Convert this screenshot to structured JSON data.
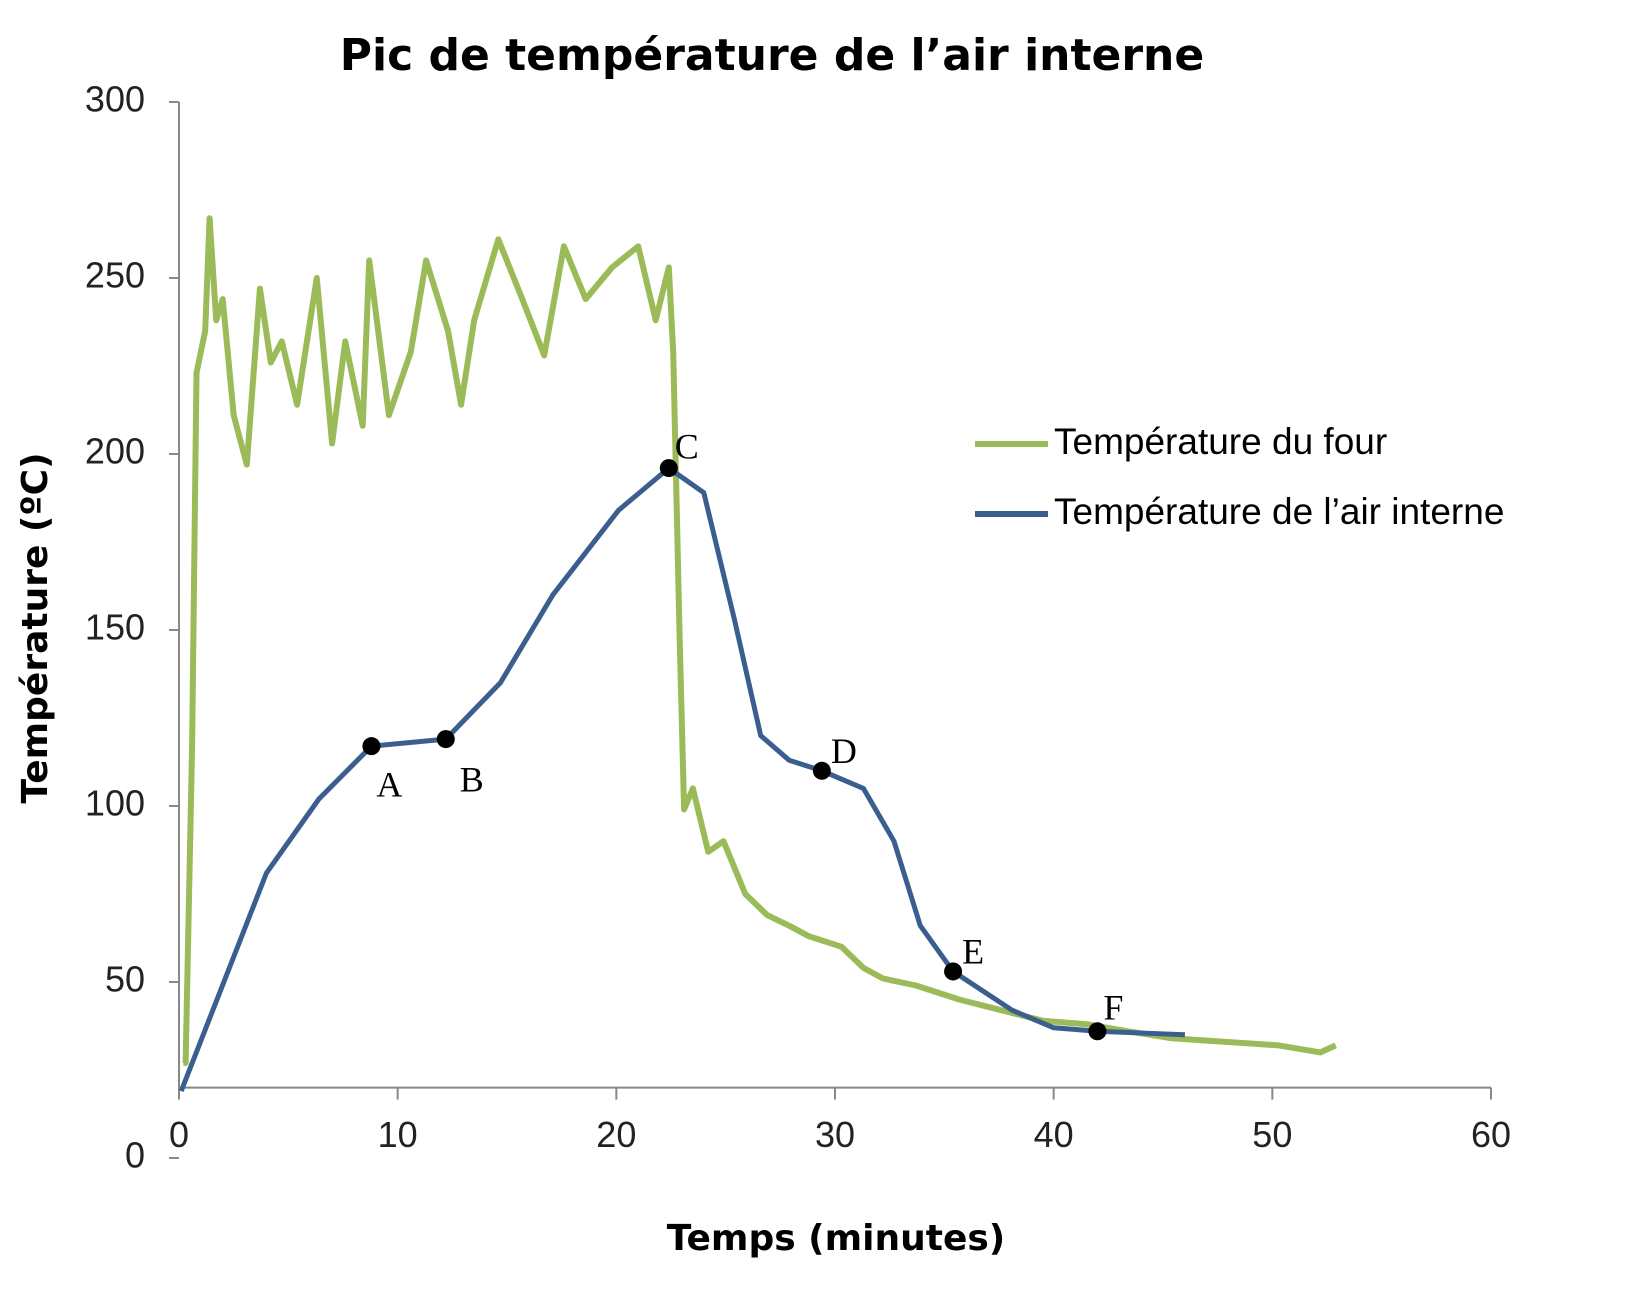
{
  "chart_data": {
    "type": "line",
    "title": "Pic de température de l’air interne",
    "x_label": "Temps (minutes)",
    "y_label": "Température (ºC)",
    "xlim": [
      0,
      60
    ],
    "xticks": [
      0,
      10,
      20,
      30,
      40,
      50,
      60
    ],
    "ylim": [
      0,
      300
    ],
    "yticks": [
      0,
      50,
      100,
      150,
      200,
      250,
      300
    ],
    "x_axis_at": 20,
    "legend": "right",
    "series": [
      {
        "name": "Température du four",
        "color": "#9bbb59",
        "x": [
          0.2,
          0.3,
          0.6,
          0.8,
          1.2,
          1.4,
          1.7,
          2,
          2.5,
          3.1,
          3.7,
          4.2,
          4.7,
          5.4,
          6.3,
          7,
          7.6,
          8.4,
          8.7,
          9.6,
          10.6,
          11.3,
          12.3,
          12.9,
          13.5,
          14.6,
          15.7,
          16.7,
          17.6,
          18.6,
          19.8,
          21,
          21.8,
          22.4,
          22.6,
          22.9,
          23.1,
          23.5,
          24.2,
          24.9,
          25.9,
          26.9,
          27.9,
          28.8,
          30.3,
          31.3,
          32.2,
          33.7,
          35.7,
          37.6,
          39.5,
          41.5,
          43.4,
          45.4,
          47.8,
          50.3,
          52.2,
          52.9
        ],
        "values": [
          27,
          27,
          117,
          223,
          235,
          267,
          238,
          244,
          211,
          197,
          247,
          226,
          232,
          214,
          250,
          203,
          232,
          208,
          255,
          211,
          229,
          255,
          235,
          214,
          238,
          261,
          244,
          228,
          259,
          244,
          253,
          259,
          238,
          253,
          229,
          147,
          99,
          105,
          87,
          90,
          75,
          69,
          66,
          63,
          60,
          54,
          51,
          49,
          45,
          42,
          39,
          38,
          36,
          34,
          33,
          32,
          30,
          32
        ]
      },
      {
        "name": "Température de l’air interne",
        "color": "#3a5f8f",
        "x": [
          0.1,
          4,
          6.4,
          8.8,
          12.2,
          14.7,
          17.1,
          20.1,
          22.4,
          24,
          25.4,
          26.6,
          27.9,
          29.4,
          31.3,
          32.7,
          33.9,
          35.4,
          38.1,
          40,
          42,
          46
        ],
        "values": [
          19,
          81,
          102,
          117,
          119,
          135,
          160,
          184,
          196,
          189,
          153,
          120,
          113,
          110,
          105,
          90,
          66,
          53,
          42,
          37,
          36,
          35
        ]
      }
    ],
    "annotations": [
      {
        "label": "A",
        "x": 8.8,
        "y": 117
      },
      {
        "label": "B",
        "x": 12.2,
        "y": 119
      },
      {
        "label": "C",
        "x": 22.4,
        "y": 196
      },
      {
        "label": "D",
        "x": 29.4,
        "y": 110
      },
      {
        "label": "E",
        "x": 35.4,
        "y": 53
      },
      {
        "label": "F",
        "x": 42,
        "y": 36
      }
    ]
  }
}
